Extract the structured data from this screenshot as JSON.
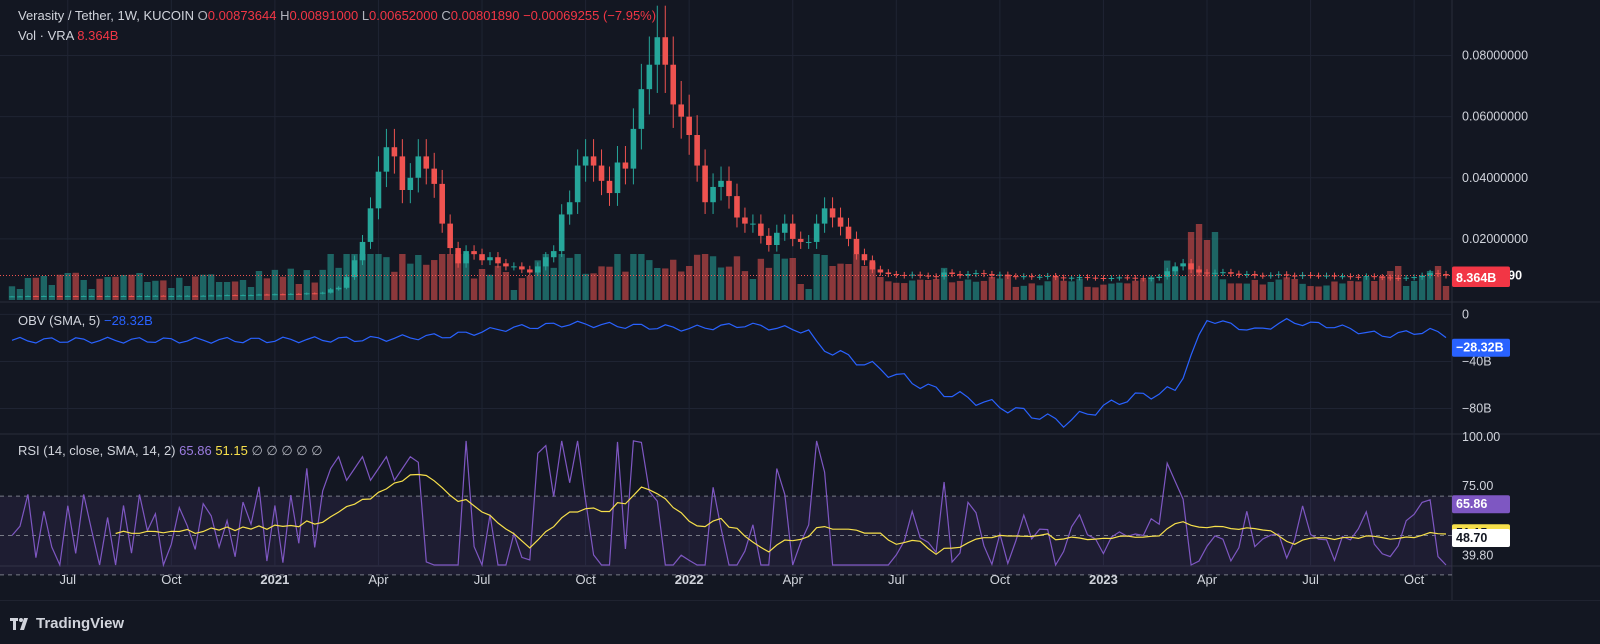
{
  "legend": {
    "symbol": "Verasity / Tether, 1W, KUCOIN",
    "o_label": "O",
    "o": "0.00873644",
    "h_label": "H",
    "h": "0.00891000",
    "l_label": "L",
    "l": "0.00652000",
    "c_label": "C",
    "c": "0.00801890",
    "change": "−0.00069255 (−7.95%)",
    "vol_label": "Vol · VRA",
    "vol": "8.364B",
    "obv_label": "OBV (SMA, 5)",
    "obv": "−28.32B",
    "rsi_label": "RSI (14, close, SMA, 14, 2)",
    "rsi": "65.86",
    "rsi_ma": "51.15",
    "rsi_extra": "∅ ∅ ∅ ∅ ∅"
  },
  "brand": "TradingView",
  "colors": {
    "up": "#26a69a",
    "down": "#ef5350",
    "bg": "#131722",
    "grid": "#1f2433",
    "obv": "#2962ff",
    "rsi": "#7e57c2",
    "rsi_ma": "#f7e04b"
  },
  "chart_data": [
    {
      "type": "candlestick",
      "title": "Verasity / Tether, 1W, KUCOIN",
      "ylim": [
        0,
        0.09
      ],
      "y_ticks": [
        "0.02000000",
        "0.04000000",
        "0.06000000",
        "0.08000000"
      ],
      "last_price": "0.00801890",
      "last_volume": "8.364B",
      "x_ticks": [
        "Jul",
        "Oct",
        "2021",
        "Apr",
        "Jul",
        "Oct",
        "2022",
        "Apr",
        "Jul",
        "Oct",
        "2023",
        "Apr",
        "Jul",
        "Oct"
      ],
      "close_series": [
        0.0012,
        0.0012,
        0.0013,
        0.0012,
        0.0013,
        0.0013,
        0.0012,
        0.0013,
        0.0012,
        0.0013,
        0.0013,
        0.0012,
        0.0013,
        0.0012,
        0.0013,
        0.0012,
        0.0013,
        0.0013,
        0.0014,
        0.0013,
        0.0013,
        0.0014,
        0.0014,
        0.0013,
        0.0014,
        0.0015,
        0.0015,
        0.0016,
        0.0015,
        0.0016,
        0.0016,
        0.0018,
        0.0017,
        0.0019,
        0.0018,
        0.002,
        0.0019,
        0.0022,
        0.0021,
        0.0024,
        0.0035,
        0.004,
        0.0075,
        0.013,
        0.019,
        0.03,
        0.042,
        0.05,
        0.047,
        0.036,
        0.04,
        0.047,
        0.043,
        0.038,
        0.025,
        0.017,
        0.012,
        0.016,
        0.015,
        0.013,
        0.014,
        0.012,
        0.011,
        0.011,
        0.01,
        0.009,
        0.011,
        0.014,
        0.016,
        0.028,
        0.032,
        0.044,
        0.047,
        0.044,
        0.039,
        0.035,
        0.045,
        0.043,
        0.056,
        0.069,
        0.077,
        0.086,
        0.077,
        0.064,
        0.06,
        0.054,
        0.044,
        0.032,
        0.037,
        0.039,
        0.034,
        0.027,
        0.025,
        0.025,
        0.021,
        0.018,
        0.022,
        0.025,
        0.02,
        0.019,
        0.019,
        0.025,
        0.03,
        0.027,
        0.024,
        0.02,
        0.015,
        0.013,
        0.01,
        0.009,
        0.0085,
        0.0082,
        0.008,
        0.0083,
        0.008,
        0.0078,
        0.0076,
        0.009,
        0.0085,
        0.008,
        0.0085,
        0.0088,
        0.0085,
        0.008,
        0.0083,
        0.0078,
        0.0076,
        0.0078,
        0.0075,
        0.0076,
        0.0079,
        0.0074,
        0.0072,
        0.0073,
        0.0075,
        0.0073,
        0.0072,
        0.007,
        0.0072,
        0.0074,
        0.0073,
        0.0071,
        0.0069,
        0.0072,
        0.0076,
        0.0094,
        0.011,
        0.012,
        0.01,
        0.009,
        0.0087,
        0.0089,
        0.0091,
        0.0086,
        0.0082,
        0.0085,
        0.008,
        0.0079,
        0.0081,
        0.0084,
        0.008,
        0.0078,
        0.0082,
        0.008,
        0.0079,
        0.008,
        0.0077,
        0.0078,
        0.0076,
        0.0075,
        0.0078,
        0.0076,
        0.0074,
        0.0072,
        0.0071,
        0.0073,
        0.0075,
        0.008,
        0.0088,
        0.0085,
        0.008
      ]
    },
    {
      "type": "line",
      "title": "OBV (SMA, 5)",
      "y_ticks": [
        "0",
        "−40B",
        "−80B"
      ],
      "last_value": "−28.32B",
      "ylim": [
        -100,
        8
      ]
    },
    {
      "type": "line",
      "title": "RSI (14, close, SMA, 14, 2)",
      "ylim": [
        35,
        100
      ],
      "y_ticks": [
        "100.00",
        "75.00",
        "39.80"
      ],
      "labels": [
        "65.86",
        "51.15",
        "48.70"
      ],
      "bands": [
        70,
        50,
        30
      ]
    }
  ]
}
